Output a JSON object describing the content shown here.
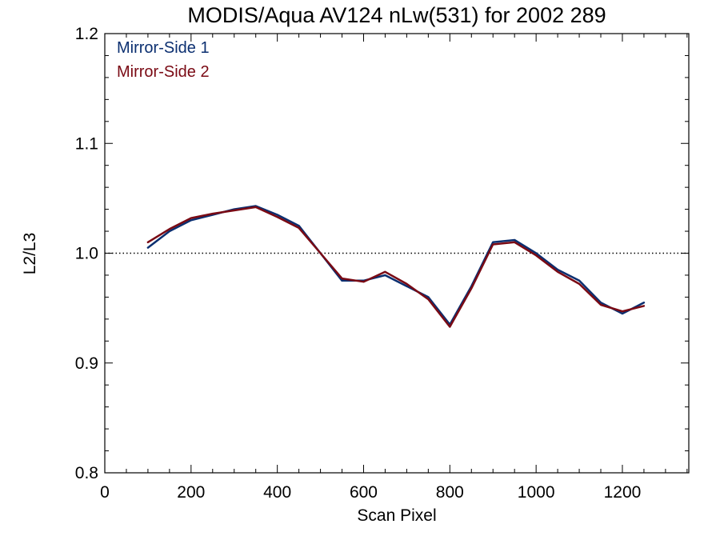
{
  "chart_data": {
    "type": "line",
    "title": "MODIS/Aqua AV124 nLw(531) for 2002 289",
    "xlabel": "Scan Pixel",
    "ylabel": "L2/L3",
    "xlim": [
      0,
      1354
    ],
    "ylim": [
      0.8,
      1.2
    ],
    "xticks": [
      0,
      200,
      400,
      600,
      800,
      1000,
      1200
    ],
    "xtick_labels": [
      "0",
      "200",
      "400",
      "600",
      "800",
      "1000",
      "1200"
    ],
    "yticks": [
      0.8,
      0.9,
      1.0,
      1.1,
      1.2
    ],
    "ytick_labels": [
      "0.8",
      "0.9",
      "1.0",
      "1.1",
      "1.2"
    ],
    "reference_line": {
      "y": 1.0,
      "style": "dotted"
    },
    "legend_position": "top-left",
    "grid": false,
    "x": [
      100,
      150,
      200,
      250,
      300,
      350,
      400,
      450,
      500,
      550,
      600,
      650,
      700,
      750,
      800,
      850,
      900,
      950,
      1000,
      1050,
      1100,
      1150,
      1200,
      1250
    ],
    "series": [
      {
        "name": "Mirror-Side 1",
        "color": "#0b2f70",
        "values": [
          1.005,
          1.02,
          1.03,
          1.035,
          1.04,
          1.043,
          1.035,
          1.025,
          1.0,
          0.975,
          0.975,
          0.98,
          0.97,
          0.96,
          0.935,
          0.97,
          1.01,
          1.012,
          1.0,
          0.985,
          0.975,
          0.955,
          0.945,
          0.955
        ]
      },
      {
        "name": "Mirror-Side 2",
        "color": "#7a0a14",
        "values": [
          1.01,
          1.022,
          1.032,
          1.036,
          1.039,
          1.042,
          1.033,
          1.023,
          1.0,
          0.977,
          0.974,
          0.983,
          0.972,
          0.958,
          0.933,
          0.968,
          1.008,
          1.01,
          0.998,
          0.983,
          0.972,
          0.953,
          0.947,
          0.952
        ]
      }
    ]
  }
}
